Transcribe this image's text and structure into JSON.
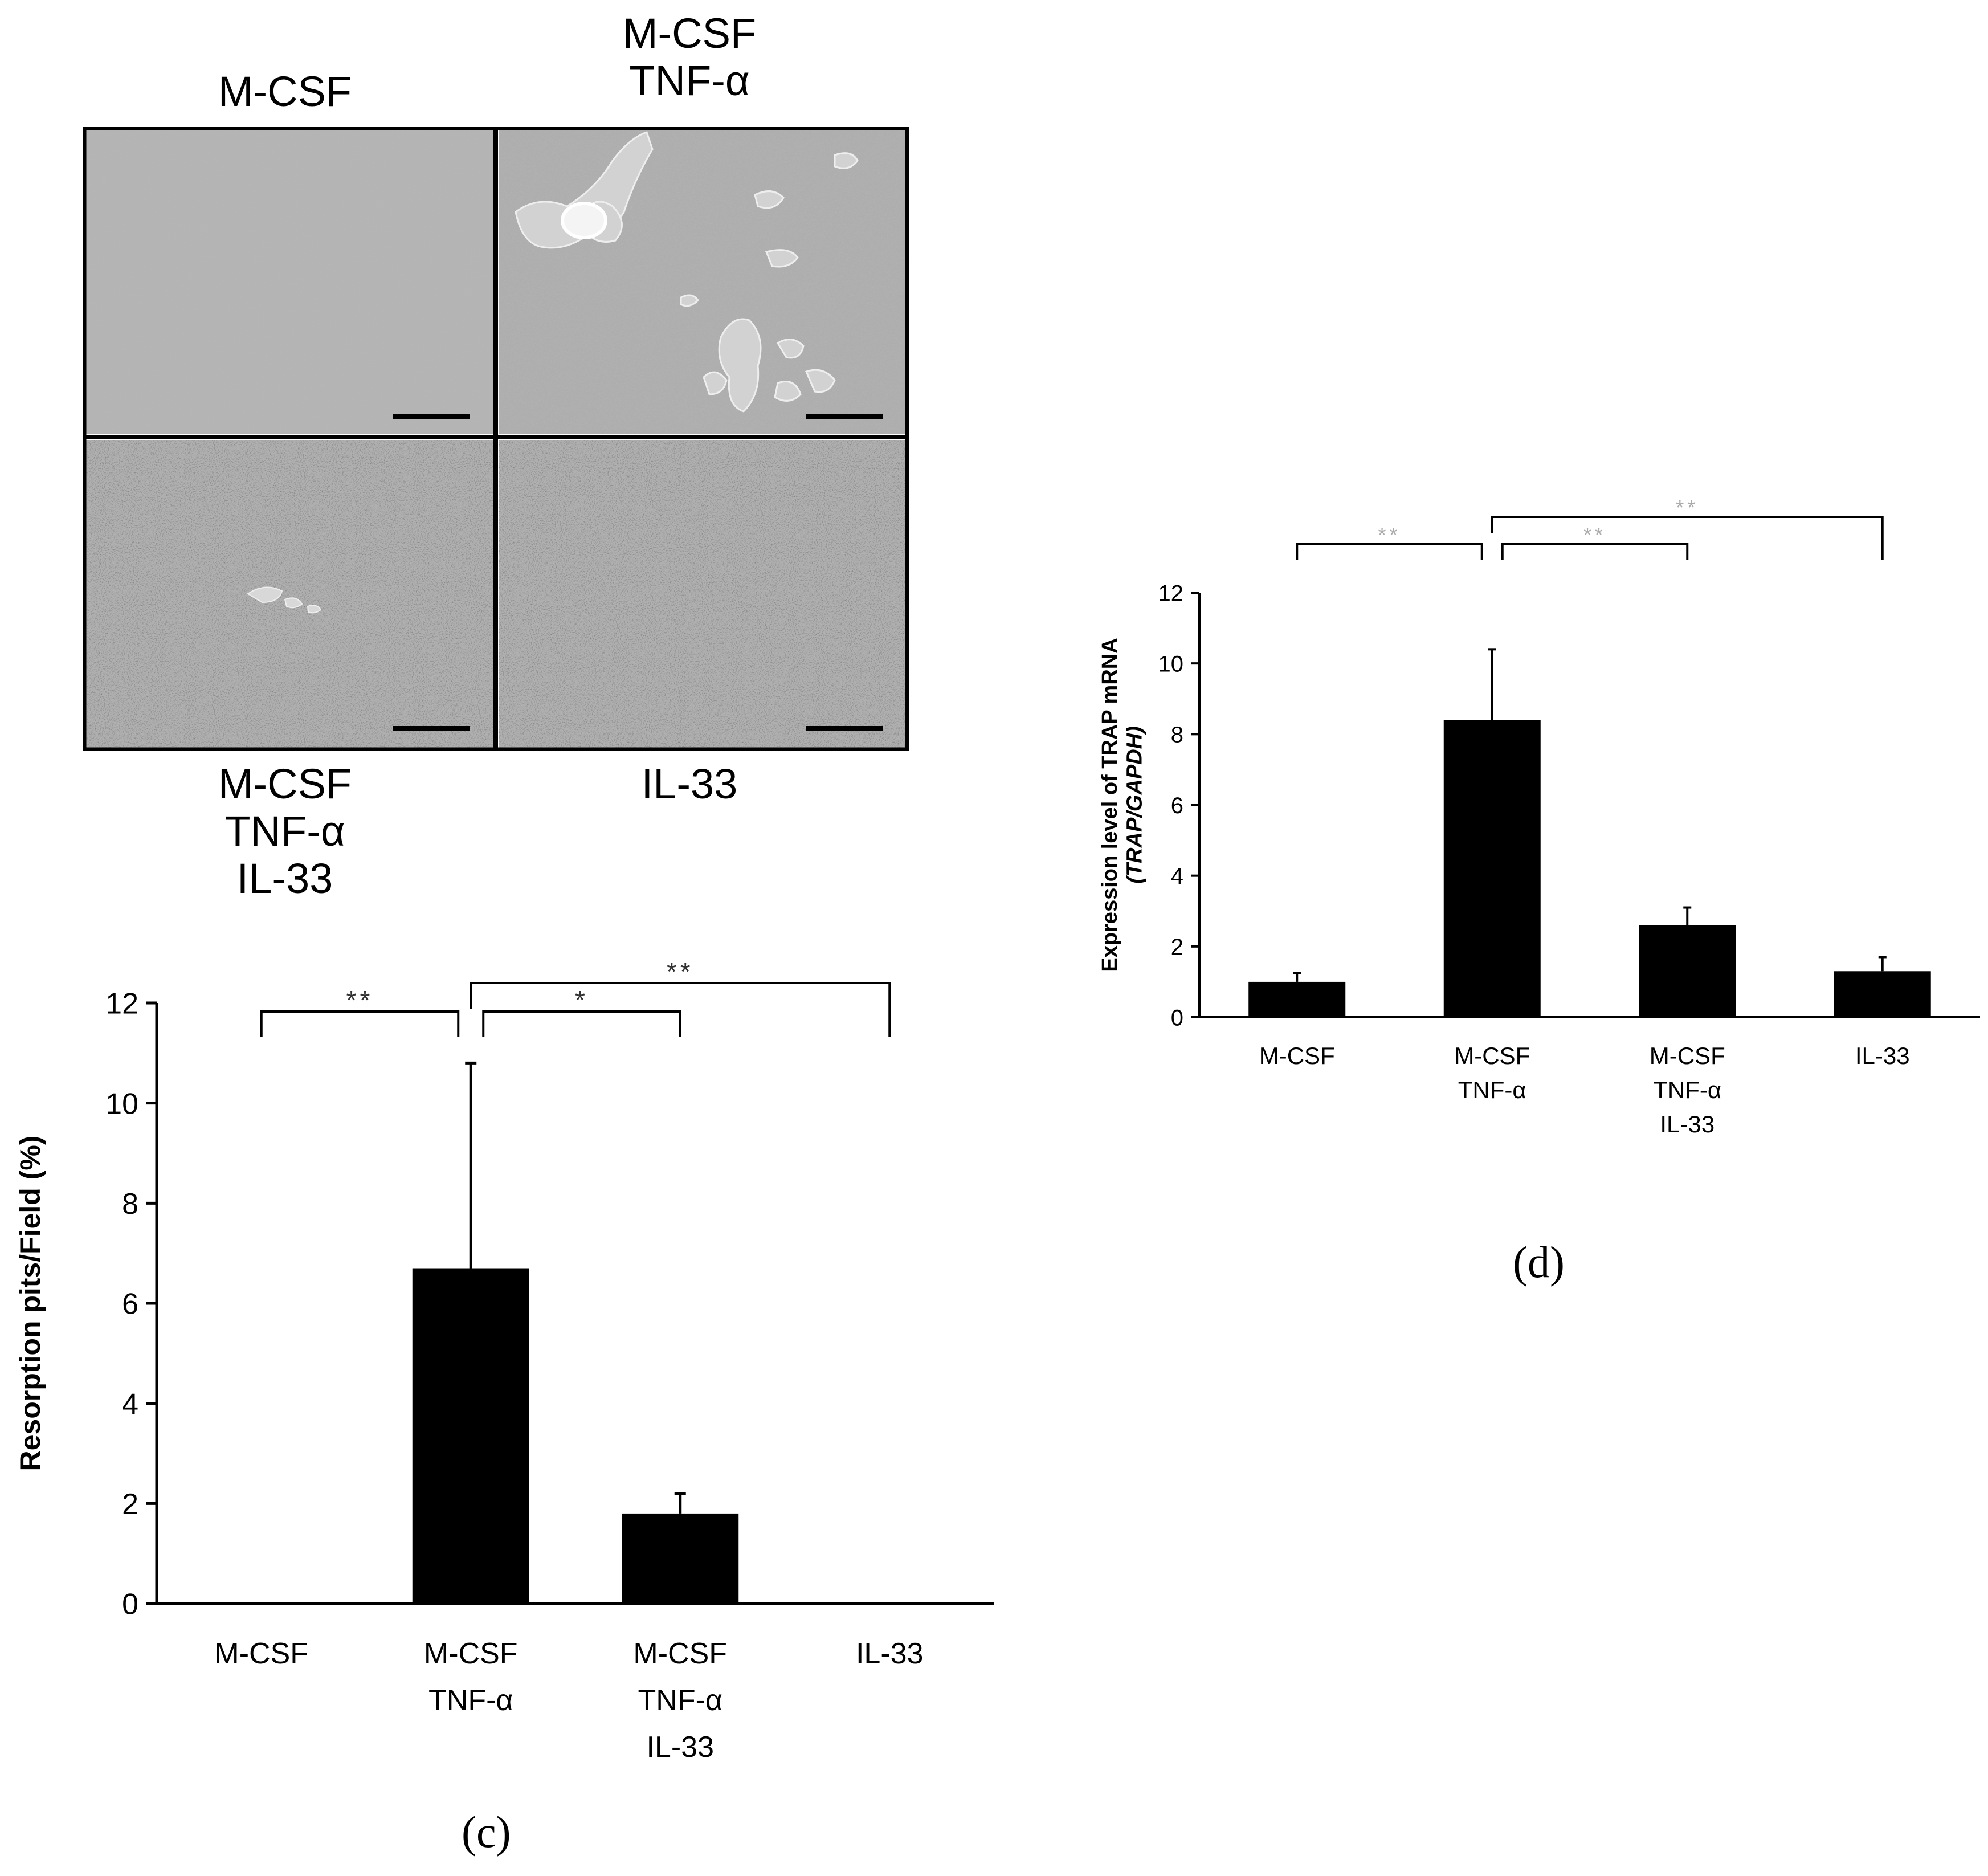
{
  "micrographs": {
    "labels": [
      {
        "id": "tl",
        "text": "M-CSF"
      },
      {
        "id": "tr",
        "text": "M-CSF\nTNF-α"
      },
      {
        "id": "bl",
        "text": "M-CSF\nTNF-α\nIL-33"
      },
      {
        "id": "br",
        "text": "IL-33"
      }
    ]
  },
  "panel_c_label": "(c)",
  "panel_d_label": "(d)",
  "chart_data": [
    {
      "panel": "c",
      "type": "bar",
      "categories": [
        "M-CSF",
        "M-CSF\nTNF-α",
        "M-CSF\nTNF-α\nIL-33",
        "IL-33"
      ],
      "values": [
        0,
        6.7,
        1.8,
        0
      ],
      "error": [
        0,
        4.1,
        0.4,
        0
      ],
      "ylabel": "Resorption pits/Field (%)",
      "ylabel_italic": "",
      "ylim": [
        0,
        12
      ],
      "yticks": [
        0,
        2,
        4,
        6,
        8,
        10,
        12
      ],
      "bar_color": "#000000",
      "significance": [
        {
          "from": 0,
          "to": 1,
          "label": "**",
          "level": 0
        },
        {
          "from": 1,
          "to": 2,
          "label": "*",
          "level": 0
        },
        {
          "from": 1,
          "to": 3,
          "label": "**",
          "level": 1
        }
      ]
    },
    {
      "panel": "d",
      "type": "bar",
      "categories": [
        "M-CSF",
        "M-CSF\nTNF-α",
        "M-CSF\nTNF-α\nIL-33",
        "IL-33"
      ],
      "values": [
        1.0,
        8.4,
        2.6,
        1.3
      ],
      "error": [
        0.25,
        2.0,
        0.5,
        0.4
      ],
      "ylabel": "Expression level of TRAP mRNA",
      "ylabel_italic": "(TRAP/GAPDH)",
      "ylim": [
        0,
        12
      ],
      "yticks": [
        0,
        2,
        4,
        6,
        8,
        10,
        12
      ],
      "bar_color": "#000000",
      "significance": [
        {
          "from": 0,
          "to": 1,
          "label": "**",
          "level": 0
        },
        {
          "from": 1,
          "to": 2,
          "label": "**",
          "level": 0
        },
        {
          "from": 1,
          "to": 3,
          "label": "**",
          "level": 1
        }
      ]
    }
  ]
}
